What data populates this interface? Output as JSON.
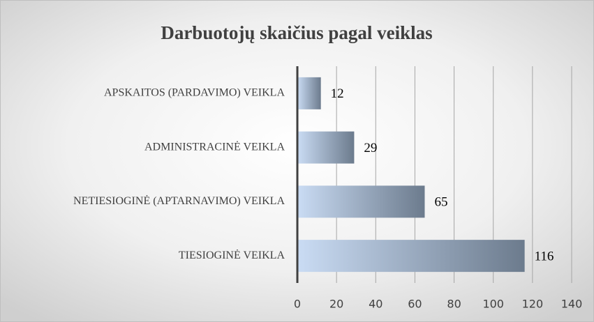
{
  "chart_data": {
    "type": "barh",
    "title": "Darbuotojų skaičius pagal veiklas",
    "categories": [
      "APSKAITOS (PARDAVIMO) VEIKLA",
      "ADMINISTRACINĖ VEIKLA",
      "NETIESIOGINĖ (APTARNAVIMO) VEIKLA",
      "TIESIOGINĖ VEIKLA"
    ],
    "values": [
      12,
      29,
      65,
      116
    ],
    "color": [
      "#cadcf4",
      "#6c7b8d"
    ],
    "xlim": [
      0,
      140
    ],
    "xticks": [
      0,
      20,
      40,
      60,
      80,
      100,
      120,
      140
    ],
    "grid": true
  }
}
